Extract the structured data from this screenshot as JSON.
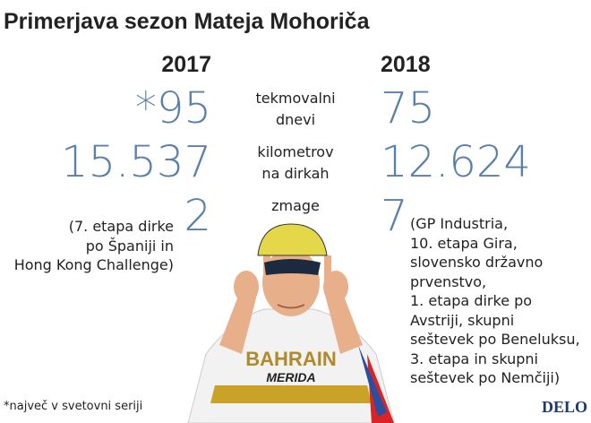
{
  "header": {
    "title": "Primerjava sezon Mateja Mohoriča"
  },
  "years": [
    "2017",
    "2018"
  ],
  "rows": [
    {
      "label": [
        "tekmovalni",
        "dnevi"
      ],
      "values": [
        "*95",
        "75"
      ]
    },
    {
      "label": [
        "kilometrov",
        "na dirkah"
      ],
      "values": [
        "15.537",
        "12.624"
      ]
    },
    {
      "label": [
        "zmage"
      ],
      "values": [
        "2",
        "7"
      ]
    }
  ],
  "notes": [
    [
      "(7. etapa dirke",
      "po Španiji in",
      "Hong Kong Challenge)"
    ],
    [
      "(GP Industria,",
      "10. etapa Gira,",
      "slovensko državno",
      "prvenstvo,",
      "1. etapa dirke po",
      "Avstriji, skupni",
      "seštevek po Beneluksu,",
      "3. etapa in skupni",
      "seštevek po Nemčiji)"
    ]
  ],
  "footnote": "*največ v svetovni seriji",
  "source": "DELO"
}
